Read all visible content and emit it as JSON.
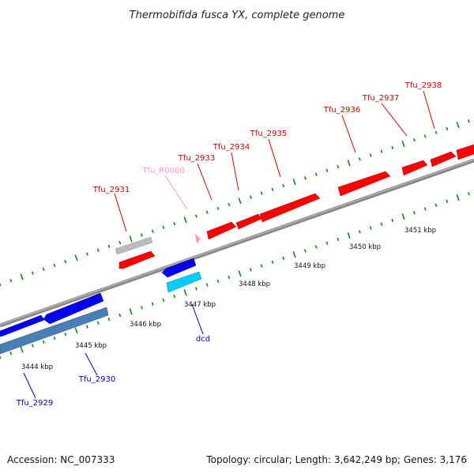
{
  "title": "Thermobifida fusca YX, complete genome",
  "footer": {
    "accession": "Accession: NC_007333",
    "summary": "Topology: circular; Length: 3,642,249 bp; Genes: 3,176"
  },
  "colors": {
    "forward": "#ff0000",
    "forward_pseudo": "#bbbbbb",
    "rna": "#ff99cc",
    "reverse": "#0000ee",
    "reverse_light": "#00ccff",
    "reverse_steel": "#4a7fb5",
    "label_forward": "#d00000",
    "label_rna": "#ff99cc",
    "label_reverse": "#0000aa",
    "tick": "#118811",
    "backbone": "#888888"
  },
  "scale_labels": [
    {
      "kbp": 3444,
      "text": "3444 kbp"
    },
    {
      "kbp": 3445,
      "text": "3445 kbp"
    },
    {
      "kbp": 3446,
      "text": "3446 kbp"
    },
    {
      "kbp": 3447,
      "text": "3447 kbp"
    },
    {
      "kbp": 3448,
      "text": "3448 kbp"
    },
    {
      "kbp": 3449,
      "text": "3449 kbp"
    },
    {
      "kbp": 3450,
      "text": "3450 kbp"
    },
    {
      "kbp": 3451,
      "text": "3451 kbp"
    }
  ],
  "gene_labels": [
    {
      "name": "Tfu_2931",
      "strand": "forward"
    },
    {
      "name": "Tfu_R0060",
      "strand": "rna"
    },
    {
      "name": "Tfu_2933",
      "strand": "forward"
    },
    {
      "name": "Tfu_2934",
      "strand": "forward"
    },
    {
      "name": "Tfu_2935",
      "strand": "forward"
    },
    {
      "name": "Tfu_2936",
      "strand": "forward"
    },
    {
      "name": "Tfu_2937",
      "strand": "forward"
    },
    {
      "name": "Tfu_2938",
      "strand": "forward"
    },
    {
      "name": "Tfu_2929",
      "strand": "reverse"
    },
    {
      "name": "Tfu_2930",
      "strand": "reverse"
    },
    {
      "name": "dcd",
      "strand": "reverse"
    }
  ]
}
